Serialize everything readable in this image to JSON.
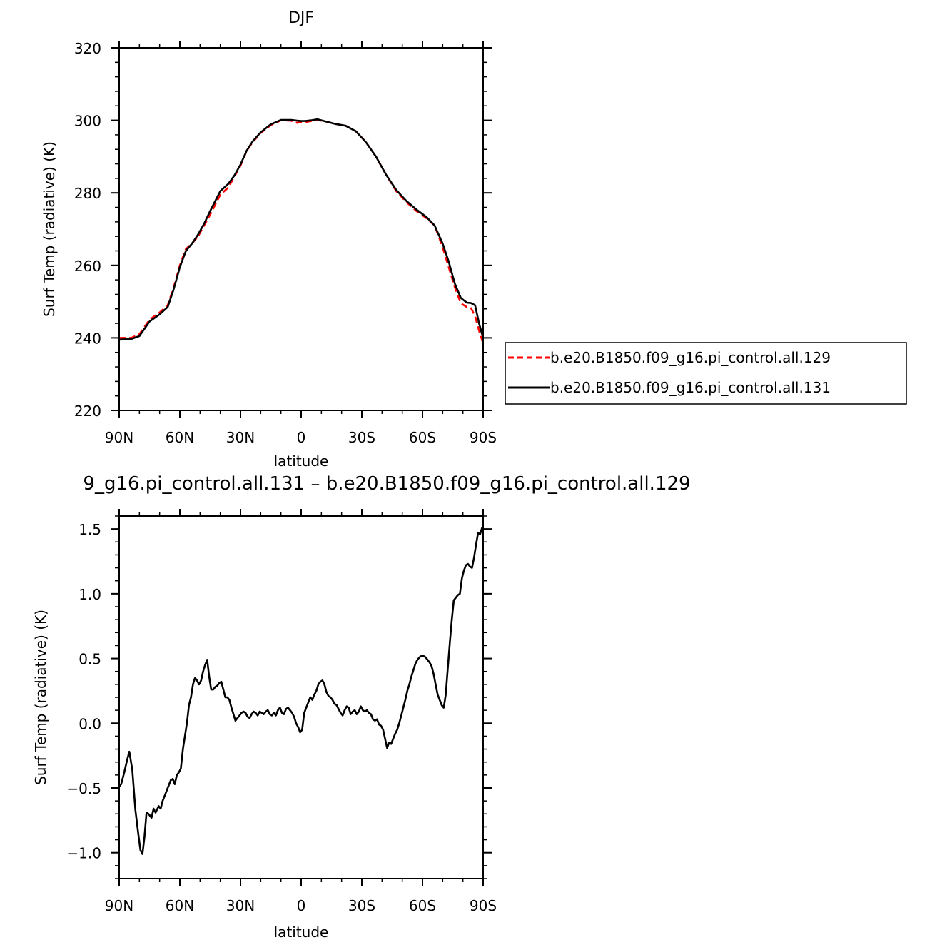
{
  "chart_data": [
    {
      "type": "line",
      "title": "DJF",
      "xlabel": "latitude",
      "ylabel": "Surf Temp (radiative) (K)",
      "xlim": [
        90,
        -90
      ],
      "ylim": [
        220,
        320
      ],
      "xticks": [
        {
          "value": 90,
          "label": "90N"
        },
        {
          "value": 60,
          "label": "60N"
        },
        {
          "value": 30,
          "label": "30N"
        },
        {
          "value": 0,
          "label": "0"
        },
        {
          "value": -30,
          "label": "30S"
        },
        {
          "value": -60,
          "label": "60S"
        },
        {
          "value": -90,
          "label": "90S"
        }
      ],
      "yticks": [
        {
          "value": 220,
          "label": "220"
        },
        {
          "value": 240,
          "label": "240"
        },
        {
          "value": 260,
          "label": "260"
        },
        {
          "value": 280,
          "label": "280"
        },
        {
          "value": 300,
          "label": "300"
        },
        {
          "value": 320,
          "label": "320"
        }
      ],
      "legend_position": "right, outside plot",
      "series": [
        {
          "name": "b.e20.B1850.f09_g16.pi_control.all.129",
          "color": "#ff0000",
          "dash": "dashed",
          "x": [
            90,
            84,
            80,
            75,
            70,
            66,
            63,
            60,
            57,
            54,
            51,
            48,
            45,
            40,
            36,
            33,
            30,
            27,
            24,
            20,
            15,
            10,
            5,
            2,
            0,
            -2,
            -5,
            -8,
            -12,
            -17,
            -22,
            -27,
            -32,
            -37,
            -42,
            -47,
            -52,
            -57,
            -62,
            -66,
            -70,
            -73,
            -76,
            -79,
            -82,
            -84,
            -86,
            -88,
            -90
          ],
          "y": [
            240,
            240,
            241,
            245,
            247,
            249,
            254,
            260,
            264.5,
            266,
            268,
            271,
            274,
            279.5,
            281.5,
            284.5,
            287.5,
            291.5,
            294,
            296.5,
            298.7,
            300,
            299.9,
            299.3,
            299.6,
            299.5,
            299.8,
            300.1,
            299.7,
            299,
            298.5,
            297,
            294,
            290,
            285,
            280.5,
            277.5,
            275,
            273,
            271,
            265,
            259.5,
            254,
            249.5,
            248.5,
            248.2,
            246,
            242,
            238.5
          ]
        },
        {
          "name": "b.e20.B1850.f09_g16.pi_control.all.131",
          "color": "#000000",
          "dash": "solid",
          "x": [
            90,
            84,
            80,
            75,
            70,
            66,
            63,
            60,
            57,
            54,
            51,
            48,
            45,
            40,
            36,
            33,
            30,
            27,
            24,
            20,
            15,
            10,
            5,
            2,
            0,
            -2,
            -5,
            -8,
            -12,
            -17,
            -22,
            -27,
            -32,
            -37,
            -42,
            -47,
            -52,
            -57,
            -62,
            -66,
            -70,
            -73,
            -76,
            -79,
            -82,
            -84,
            -86,
            -88,
            -90
          ],
          "y": [
            239.5,
            239.7,
            240.5,
            244.5,
            246.5,
            248.5,
            253.5,
            259.5,
            264,
            266,
            268.5,
            271.5,
            275,
            280.5,
            282.5,
            284.8,
            287.8,
            291.6,
            294.2,
            296.7,
            298.9,
            300.1,
            300.1,
            299.9,
            299.8,
            299.8,
            300,
            300.3,
            299.7,
            299,
            298.5,
            297,
            294,
            290,
            285,
            280.8,
            277.8,
            275.4,
            273.3,
            271,
            266,
            261,
            255,
            251,
            249.7,
            249.6,
            249,
            244,
            240
          ]
        }
      ]
    },
    {
      "type": "line",
      "title": "9_g16.pi_control.all.131 – b.e20.B1850.f09_g16.pi_control.all.129",
      "xlabel": "latitude",
      "ylabel": "Surf Temp (radiative) (K)",
      "xlim": [
        90,
        -90
      ],
      "ylim": [
        -1.2,
        1.6
      ],
      "xticks": [
        {
          "value": 90,
          "label": "90N"
        },
        {
          "value": 60,
          "label": "60N"
        },
        {
          "value": 30,
          "label": "30N"
        },
        {
          "value": 0,
          "label": "0"
        },
        {
          "value": -30,
          "label": "30S"
        },
        {
          "value": -60,
          "label": "60S"
        },
        {
          "value": -90,
          "label": "90S"
        }
      ],
      "yticks": [
        {
          "value": -1.0,
          "label": "−1.0"
        },
        {
          "value": -0.5,
          "label": "−0.5"
        },
        {
          "value": 0.0,
          "label": "0.0"
        },
        {
          "value": 0.5,
          "label": "0.5"
        },
        {
          "value": 1.0,
          "label": "1.0"
        },
        {
          "value": 1.5,
          "label": "1.5"
        }
      ],
      "series": [
        {
          "color": "#000000",
          "dash": "solid",
          "x": [
            90,
            89,
            87.5,
            86,
            85,
            83.5,
            82,
            80.5,
            79.5,
            78.5,
            77.5,
            76.5,
            75.5,
            74,
            73,
            72,
            70.5,
            69.5,
            68.5,
            67,
            66,
            64.5,
            63.5,
            62.5,
            61.5,
            60.5,
            59.5,
            58.5,
            57.5,
            56.5,
            55.5,
            54.5,
            53.5,
            52.5,
            51.5,
            50.5,
            49.5,
            48.5,
            47.5,
            46.5,
            45.5,
            44.5,
            43.5,
            42.5,
            41.5,
            40.5,
            39.5,
            38.5,
            37.5,
            36.5,
            35.5,
            34.5,
            33.5,
            32.5,
            31.5,
            30.5,
            29.5,
            28.5,
            27.5,
            26.5,
            25.5,
            24.5,
            23.5,
            22.5,
            21.5,
            20.5,
            19.5,
            18.5,
            17.5,
            16.5,
            15.5,
            14.5,
            13.5,
            12.5,
            11.5,
            10.5,
            9.5,
            8.5,
            7.5,
            6.5,
            5.5,
            4.5,
            3.5,
            2.5,
            1.5,
            0.5,
            -0.5,
            -1.5,
            -2.5,
            -3.5,
            -4.5,
            -5.5,
            -6.5,
            -7.5,
            -8.5,
            -9.5,
            -10.5,
            -11.5,
            -12.5,
            -13.5,
            -14.5,
            -15.5,
            -16.5,
            -17.5,
            -18.5,
            -19.5,
            -20.5,
            -21.5,
            -22.5,
            -23.5,
            -24.5,
            -25.5,
            -26.5,
            -27.5,
            -28.5,
            -29.5,
            -30.5,
            -31.5,
            -32.5,
            -33.5,
            -34.5,
            -35.5,
            -36.5,
            -37.5,
            -38.5,
            -39.5,
            -40.5,
            -41.5,
            -42.5,
            -43.5,
            -44.5,
            -45.5,
            -46.5,
            -47.5,
            -48.5,
            -49.5,
            -50.5,
            -51.5,
            -52.5,
            -53.5,
            -54.5,
            -55.5,
            -56.5,
            -57.5,
            -58.5,
            -59.5,
            -60.5,
            -61.5,
            -62.5,
            -63.5,
            -64.5,
            -65.5,
            -66.5,
            -67.5,
            -68.5,
            -69.5,
            -70.5,
            -71.5,
            -72.5,
            -73.5,
            -74.5,
            -75.5,
            -76.5,
            -77.5,
            -78.5,
            -79.5,
            -80.5,
            -81.5,
            -82.5,
            -83.5,
            -84.5,
            -85.5,
            -86.5,
            -87.5,
            -88.5,
            -89.5,
            -90
          ],
          "y": [
            -0.49,
            -0.47,
            -0.38,
            -0.28,
            -0.22,
            -0.36,
            -0.67,
            -0.86,
            -0.98,
            -1.01,
            -0.88,
            -0.69,
            -0.7,
            -0.73,
            -0.66,
            -0.69,
            -0.64,
            -0.66,
            -0.6,
            -0.54,
            -0.5,
            -0.44,
            -0.43,
            -0.47,
            -0.4,
            -0.38,
            -0.35,
            -0.2,
            -0.1,
            0.0,
            0.14,
            0.2,
            0.3,
            0.35,
            0.33,
            0.3,
            0.33,
            0.4,
            0.45,
            0.49,
            0.36,
            0.26,
            0.26,
            0.28,
            0.29,
            0.31,
            0.32,
            0.26,
            0.2,
            0.2,
            0.18,
            0.12,
            0.07,
            0.02,
            0.04,
            0.06,
            0.08,
            0.09,
            0.08,
            0.05,
            0.04,
            0.07,
            0.09,
            0.08,
            0.06,
            0.09,
            0.08,
            0.07,
            0.09,
            0.1,
            0.07,
            0.06,
            0.08,
            0.06,
            0.1,
            0.12,
            0.08,
            0.07,
            0.11,
            0.12,
            0.1,
            0.08,
            0.05,
            0.0,
            -0.03,
            -0.07,
            -0.05,
            0.08,
            0.12,
            0.16,
            0.2,
            0.18,
            0.22,
            0.25,
            0.3,
            0.32,
            0.33,
            0.3,
            0.24,
            0.21,
            0.2,
            0.18,
            0.15,
            0.14,
            0.11,
            0.08,
            0.06,
            0.1,
            0.13,
            0.12,
            0.07,
            0.09,
            0.1,
            0.07,
            0.09,
            0.13,
            0.1,
            0.09,
            0.1,
            0.08,
            0.07,
            0.03,
            0.02,
            0.03,
            -0.01,
            -0.02,
            -0.05,
            -0.12,
            -0.19,
            -0.15,
            -0.16,
            -0.12,
            -0.08,
            -0.05,
            0.0,
            0.06,
            0.12,
            0.18,
            0.25,
            0.3,
            0.36,
            0.41,
            0.46,
            0.49,
            0.51,
            0.52,
            0.52,
            0.51,
            0.49,
            0.47,
            0.44,
            0.38,
            0.3,
            0.22,
            0.18,
            0.14,
            0.12,
            0.22,
            0.42,
            0.62,
            0.8,
            0.95,
            0.97,
            0.99,
            1.0,
            1.12,
            1.18,
            1.22,
            1.23,
            1.21,
            1.2,
            1.28,
            1.38,
            1.47,
            1.46,
            1.51,
            1.52
          ]
        }
      ]
    }
  ]
}
